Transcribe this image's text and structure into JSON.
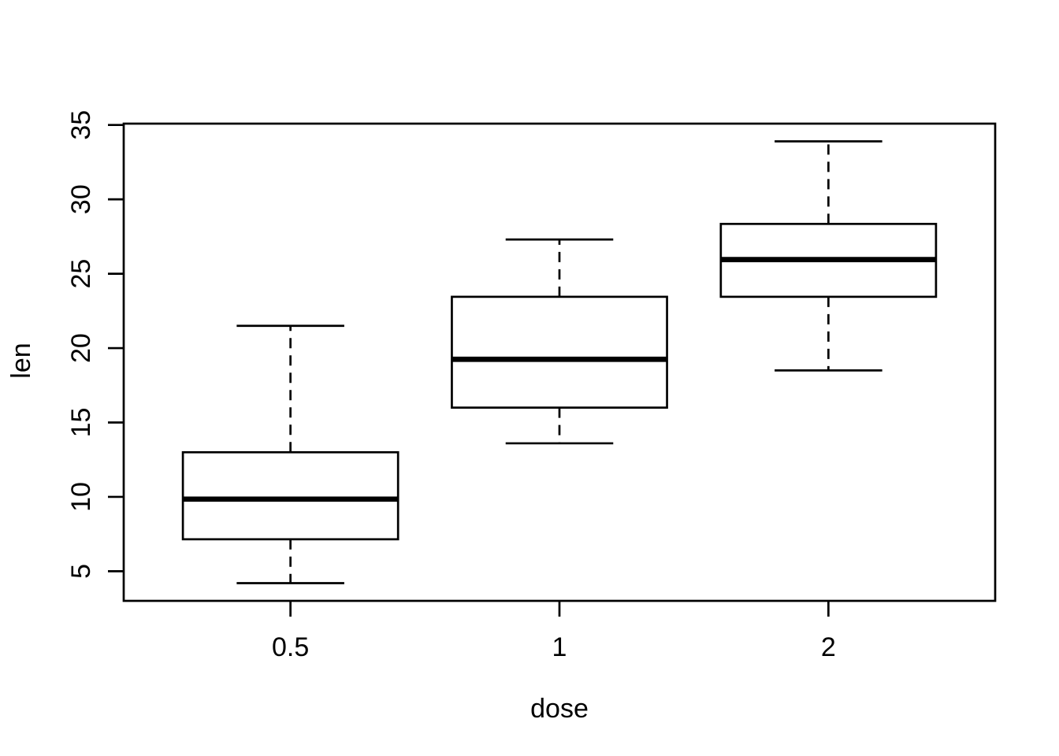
{
  "chart_data": {
    "type": "boxplot",
    "title": "",
    "xlabel": "dose",
    "ylabel": "len",
    "categories": [
      "0.5",
      "1",
      "2"
    ],
    "x_positions": [
      1,
      2,
      3
    ],
    "xlim": [
      0.38,
      3.62
    ],
    "ylim": [
      3.01,
      35.09
    ],
    "y_ticks": [
      5,
      10,
      15,
      20,
      25,
      30,
      35
    ],
    "box_width": 0.8,
    "whisker_cap_ratio": 0.5,
    "grid": false,
    "legend": "none",
    "colors": {
      "line": "#000000",
      "box_fill": "#ffffff",
      "background": "#ffffff"
    },
    "series": [
      {
        "category": "0.5",
        "whisker_low": 4.2,
        "q1": 7.15,
        "median": 9.85,
        "q3": 13.0,
        "whisker_high": 21.5,
        "outliers": []
      },
      {
        "category": "1",
        "whisker_low": 13.6,
        "q1": 16.0,
        "median": 19.25,
        "q3": 23.45,
        "whisker_high": 27.3,
        "outliers": []
      },
      {
        "category": "2",
        "whisker_low": 18.5,
        "q1": 23.45,
        "median": 25.95,
        "q3": 28.35,
        "whisker_high": 33.9,
        "outliers": []
      }
    ]
  }
}
